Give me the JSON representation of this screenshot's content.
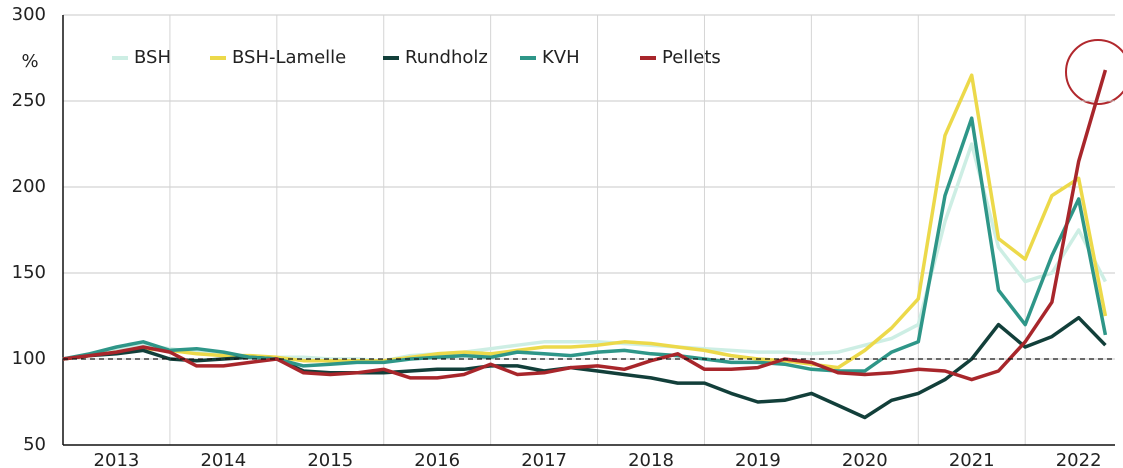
{
  "chart_data": {
    "type": "line",
    "y_label": "%",
    "x": [
      2013,
      2013.25,
      2013.5,
      2013.75,
      2014,
      2014.25,
      2014.5,
      2014.75,
      2015,
      2015.25,
      2015.5,
      2015.75,
      2016,
      2016.25,
      2016.5,
      2016.75,
      2017,
      2017.25,
      2017.5,
      2017.75,
      2018,
      2018.25,
      2018.5,
      2018.75,
      2019,
      2019.25,
      2019.5,
      2019.75,
      2020,
      2020.25,
      2020.5,
      2020.75,
      2021,
      2021.25,
      2021.5,
      2021.75,
      2022,
      2022.25,
      2022.5,
      2022.75
    ],
    "series": [
      {
        "name": "BSH",
        "color": "#cdeee4",
        "values": [
          100,
          103,
          106,
          108,
          106,
          104,
          102,
          101,
          101,
          101,
          100,
          100,
          99,
          102,
          103,
          104,
          106,
          108,
          110,
          110,
          110,
          109,
          108,
          107,
          106,
          105,
          104,
          104,
          103,
          104,
          108,
          112,
          120,
          180,
          225,
          165,
          145,
          150,
          175,
          145
        ]
      },
      {
        "name": "BSH-Lamelle",
        "color": "#ecd94a",
        "values": [
          100,
          102,
          104,
          106,
          105,
          103,
          102,
          102,
          101,
          99,
          99,
          99,
          99,
          101,
          103,
          104,
          103,
          105,
          107,
          107,
          108,
          110,
          109,
          107,
          105,
          102,
          100,
          99,
          97,
          95,
          105,
          118,
          135,
          230,
          265,
          170,
          158,
          195,
          205,
          125
        ]
      },
      {
        "name": "Rundholz",
        "color": "#123f3a",
        "values": [
          100,
          102,
          103,
          105,
          100,
          99,
          100,
          101,
          100,
          93,
          92,
          92,
          92,
          93,
          94,
          94,
          96,
          96,
          93,
          95,
          93,
          91,
          89,
          86,
          86,
          80,
          75,
          76,
          80,
          73,
          66,
          76,
          80,
          88,
          100,
          120,
          107,
          113,
          124,
          108
        ]
      },
      {
        "name": "KVH",
        "color": "#2e9688",
        "values": [
          100,
          103,
          107,
          110,
          105,
          106,
          104,
          101,
          100,
          96,
          97,
          98,
          98,
          100,
          101,
          102,
          101,
          104,
          103,
          102,
          104,
          105,
          103,
          102,
          100,
          98,
          98,
          97,
          94,
          93,
          93,
          104,
          110,
          195,
          240,
          140,
          120,
          160,
          193,
          114
        ]
      },
      {
        "name": "Pellets",
        "color": "#a8262b",
        "values": [
          100,
          102,
          104,
          107,
          104,
          96,
          96,
          98,
          100,
          92,
          91,
          92,
          94,
          89,
          89,
          91,
          97,
          91,
          92,
          95,
          96,
          94,
          99,
          103,
          94,
          94,
          95,
          100,
          98,
          92,
          91,
          92,
          94,
          93,
          88,
          93,
          110,
          133,
          215,
          268
        ]
      }
    ],
    "xlim": [
      2013,
      2022.84
    ],
    "ylim": [
      50,
      300
    ],
    "xticks": [
      {
        "value": 2013.5,
        "label": "2013"
      },
      {
        "value": 2014.5,
        "label": "2014"
      },
      {
        "value": 2015.5,
        "label": "2015"
      },
      {
        "value": 2016.5,
        "label": "2016"
      },
      {
        "value": 2017.5,
        "label": "2017"
      },
      {
        "value": 2018.5,
        "label": "2018"
      },
      {
        "value": 2019.5,
        "label": "2019"
      },
      {
        "value": 2020.5,
        "label": "2020"
      },
      {
        "value": 2021.5,
        "label": "2021"
      },
      {
        "value": 2022.5,
        "label": "2022"
      }
    ],
    "xgrid": [
      2014,
      2015,
      2016,
      2017,
      2018,
      2019,
      2020,
      2021,
      2022
    ],
    "yticks": [
      50,
      100,
      150,
      200,
      250,
      300
    ],
    "reference_line": 100,
    "grid": true
  }
}
